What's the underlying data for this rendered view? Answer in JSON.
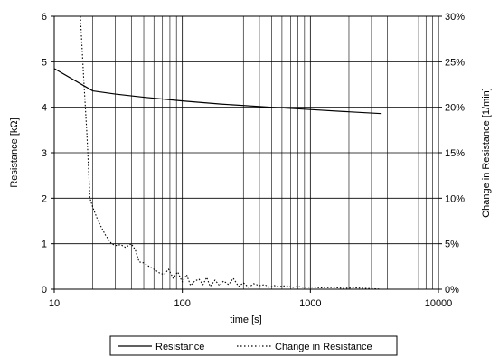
{
  "chart_data": {
    "type": "line",
    "x_scale": "log",
    "x_range": [
      10,
      10000
    ],
    "x_ticks": [
      "10",
      "100",
      "1000",
      "10000"
    ],
    "xlabel": "time [s]",
    "ylabel_left": "Resistance [kΩ]",
    "ylabel_right": "Change in Resistance  [1/min]",
    "y_left_range": [
      0,
      6
    ],
    "y_left_ticks": [
      "0",
      "1",
      "2",
      "3",
      "4",
      "5",
      "6"
    ],
    "y_right_range": [
      0,
      30
    ],
    "y_right_ticks": [
      "0%",
      "5%",
      "10%",
      "15%",
      "20%",
      "25%",
      "30%"
    ],
    "grid": true,
    "legend_position": "bottom",
    "series": [
      {
        "name": "Resistance",
        "axis": "left",
        "style": "solid",
        "color": "#000000",
        "x": [
          10,
          20,
          30,
          50,
          100,
          200,
          500,
          1000,
          2000,
          3600
        ],
        "y": [
          4.85,
          4.36,
          4.29,
          4.22,
          4.14,
          4.07,
          4.0,
          3.95,
          3.9,
          3.86
        ]
      },
      {
        "name": "Change in Resistance",
        "axis": "right",
        "style": "dotted",
        "color": "#000000",
        "x": [
          16,
          17,
          18,
          19,
          20,
          22,
          25,
          28,
          30,
          33,
          36,
          40,
          43,
          46,
          50,
          55,
          60,
          66,
          72,
          78,
          85,
          92,
          100,
          108,
          116,
          125,
          135,
          145,
          155,
          165,
          180,
          195,
          210,
          230,
          250,
          275,
          300,
          330,
          360,
          400,
          440,
          480,
          520,
          580,
          650,
          720,
          800,
          900,
          1000,
          1200,
          1500,
          1800,
          2200,
          2700,
          3200,
          3600
        ],
        "y": [
          30,
          23,
          17,
          10,
          9,
          7.5,
          6,
          5,
          4.8,
          4.9,
          4.6,
          5.0,
          4.3,
          3.0,
          2.9,
          2.5,
          2.2,
          1.8,
          1.6,
          2.2,
          1.2,
          1.9,
          0.8,
          1.6,
          0.4,
          0.9,
          1.1,
          0.5,
          1.3,
          0.3,
          1.0,
          0.4,
          0.9,
          0.5,
          1.2,
          0.3,
          0.7,
          0.2,
          0.6,
          0.4,
          0.5,
          0.2,
          0.4,
          0.3,
          0.4,
          0.2,
          0.3,
          0.2,
          0.25,
          0.15,
          0.2,
          0.1,
          0.15,
          0.1,
          0.05,
          0.0
        ]
      }
    ]
  }
}
